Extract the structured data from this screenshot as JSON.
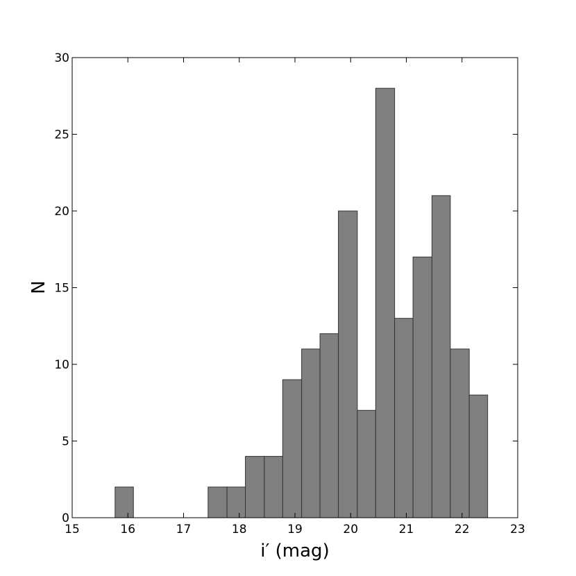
{
  "chart_data": {
    "type": "histogram",
    "xlabel": "i′ (mag)",
    "ylabel": "N",
    "bins": [
      15.77,
      16.1,
      16.44,
      16.77,
      17.11,
      17.44,
      17.78,
      18.11,
      18.45,
      18.78,
      19.12,
      19.45,
      19.78,
      20.12,
      20.45,
      20.79,
      21.12,
      21.46,
      21.79,
      22.13,
      22.46
    ],
    "values": [
      2,
      0,
      0,
      0,
      0,
      2,
      2,
      4,
      4,
      9,
      11,
      12,
      20,
      7,
      28,
      13,
      17,
      21,
      11,
      8
    ],
    "color": "#808080",
    "xlim": [
      15,
      23
    ],
    "xticks": [
      15,
      16,
      17,
      18,
      19,
      20,
      21,
      22,
      23
    ],
    "ylim": [
      0,
      30
    ],
    "yticks": [
      0,
      5,
      10,
      15,
      20,
      25,
      30
    ],
    "grid": false
  }
}
